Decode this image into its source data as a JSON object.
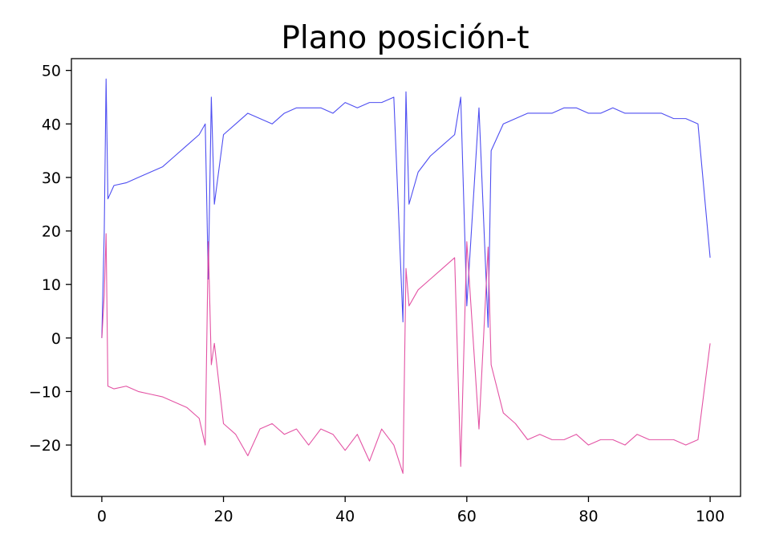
{
  "chart_data": {
    "type": "line",
    "title": "Plano posición-t",
    "xlabel": "",
    "ylabel": "",
    "xlim": [
      -5,
      105
    ],
    "ylim": [
      -29.6,
      52.2
    ],
    "x_ticks": [
      0,
      20,
      40,
      60,
      80,
      100
    ],
    "x_tick_labels": [
      "0",
      "20",
      "40",
      "60",
      "80",
      "100"
    ],
    "y_ticks": [
      -20,
      -10,
      0,
      10,
      20,
      30,
      40,
      50
    ],
    "y_tick_labels": [
      "−20",
      "−10",
      "0",
      "10",
      "20",
      "30",
      "40",
      "50"
    ],
    "grid": false,
    "legend": "none",
    "series": [
      {
        "color": "#3b3bf0",
        "x": [
          0,
          0.4,
          0.7,
          1,
          2,
          4,
          6,
          8,
          10,
          12,
          14,
          16,
          17,
          17.5,
          18,
          18.5,
          20,
          22,
          24,
          26,
          28,
          30,
          32,
          34,
          36,
          38,
          40,
          42,
          44,
          46,
          48,
          49.5,
          50,
          50.5,
          52,
          54,
          56,
          58,
          59,
          60,
          62,
          63.5,
          64,
          66,
          68,
          70,
          72,
          74,
          76,
          78,
          80,
          82,
          84,
          86,
          88,
          90,
          92,
          94,
          96,
          98,
          100
        ],
        "y": [
          0,
          20,
          48.4,
          26,
          28.5,
          29,
          30,
          31,
          32,
          34,
          36,
          38,
          40,
          11,
          45,
          25,
          38,
          40,
          42,
          41,
          40,
          42,
          43,
          43,
          43,
          42,
          44,
          43,
          44,
          44,
          45,
          3,
          46,
          25,
          31,
          34,
          36,
          38,
          45,
          6,
          43,
          2,
          35,
          40,
          41,
          42,
          42,
          42,
          43,
          43,
          42,
          42,
          43,
          42,
          42,
          42,
          42,
          41,
          41,
          40,
          15
        ]
      },
      {
        "color": "#e0409a",
        "x": [
          0,
          0.4,
          0.7,
          1,
          2,
          4,
          6,
          8,
          10,
          12,
          14,
          16,
          17,
          17.5,
          18,
          18.5,
          20,
          22,
          24,
          26,
          28,
          30,
          32,
          34,
          36,
          38,
          40,
          42,
          44,
          46,
          48,
          49.5,
          50,
          50.5,
          52,
          54,
          56,
          58,
          59,
          60,
          62,
          63.5,
          64,
          66,
          68,
          70,
          72,
          74,
          76,
          78,
          80,
          82,
          84,
          86,
          88,
          90,
          92,
          94,
          96,
          98,
          100
        ],
        "y": [
          0,
          8,
          19.5,
          -9,
          -9.5,
          -9,
          -10,
          -10.5,
          -11,
          -12,
          -13,
          -15,
          -20,
          18,
          -5,
          -1,
          -16,
          -18,
          -22,
          -17,
          -16,
          -18,
          -17,
          -20,
          -17,
          -18,
          -21,
          -18,
          -23,
          -17,
          -20,
          -25.3,
          13,
          6,
          9,
          11,
          13,
          15,
          -24,
          18,
          -17,
          17,
          -5,
          -14,
          -16,
          -19,
          -18,
          -19,
          -19,
          -18,
          -20,
          -19,
          -19,
          -20,
          -18,
          -19,
          -19,
          -19,
          -20,
          -19,
          -1
        ]
      }
    ]
  }
}
